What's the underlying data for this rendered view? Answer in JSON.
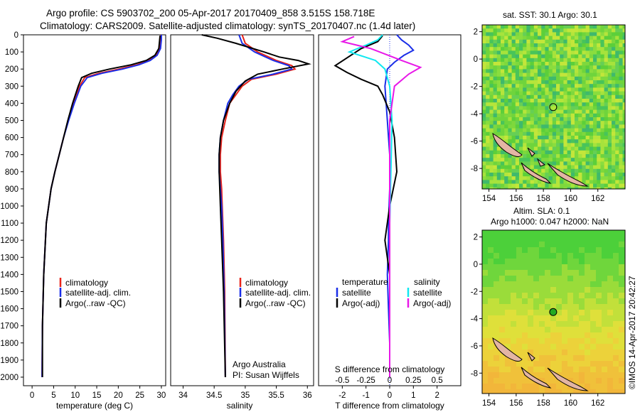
{
  "title": {
    "line1": "Argo profile: CS 5903702_200 05-Apr-2017 20170409_858 3.515S 158.718E",
    "line2": "Climatology: CARS2009. Satellite-adjusted climatology: synTS_20170407.nc (1.4d later)"
  },
  "colors": {
    "climatology": "#e8241a",
    "satellite": "#1a2ee8",
    "argo": "#000000",
    "sat_salinity": "#10e8f0",
    "argo_salinity": "#e818e8"
  },
  "chart_data": [
    {
      "type": "line",
      "name": "temperature-panel",
      "xlabel": "temperature (deg C)",
      "ylabel": "",
      "xlim": [
        -2,
        31
      ],
      "ylim": [
        2050,
        0
      ],
      "xticks": [
        0,
        5,
        10,
        15,
        20,
        25,
        30
      ],
      "yticks": [
        0,
        100,
        200,
        300,
        400,
        500,
        600,
        700,
        800,
        900,
        1000,
        1100,
        1200,
        1300,
        1400,
        1500,
        1600,
        1700,
        1800,
        1900,
        2000
      ],
      "legend": [
        "climatology",
        "satellite-adj. clim.",
        "Argo(..raw -QC)"
      ],
      "series": [
        {
          "name": "climatology",
          "color": "#e8241a",
          "x": [
            29.9,
            29.9,
            29.6,
            28.7,
            27.1,
            24.3,
            20.2,
            15.5,
            12.2,
            11.0,
            9.6,
            8.4,
            7.3,
            6.3,
            5.3,
            4.4,
            3.3,
            2.7,
            2.4,
            2.3
          ],
          "y": [
            0,
            30,
            80,
            120,
            150,
            175,
            200,
            225,
            250,
            300,
            400,
            500,
            600,
            700,
            800,
            900,
            1100,
            1400,
            1700,
            2000
          ]
        },
        {
          "name": "satellite-adj. clim.",
          "color": "#1a2ee8",
          "x": [
            30.0,
            30.0,
            29.8,
            29.0,
            27.4,
            24.8,
            21.0,
            16.2,
            12.8,
            11.3,
            9.8,
            8.5,
            7.3,
            6.3,
            5.3,
            4.4,
            3.3,
            2.7,
            2.4,
            2.3
          ],
          "y": [
            0,
            30,
            80,
            120,
            150,
            175,
            200,
            225,
            250,
            300,
            400,
            500,
            600,
            700,
            800,
            900,
            1100,
            1400,
            1700,
            2000
          ]
        },
        {
          "name": "Argo(..raw -QC)",
          "color": "#000000",
          "x": [
            29.7,
            29.6,
            29.4,
            28.5,
            26.5,
            23.0,
            18.0,
            13.8,
            11.5,
            10.7,
            9.4,
            8.3,
            7.3,
            6.3,
            5.3,
            4.4,
            3.3,
            2.7,
            2.4,
            2.4
          ],
          "y": [
            5,
            30,
            80,
            120,
            150,
            175,
            200,
            225,
            250,
            300,
            400,
            500,
            600,
            700,
            800,
            900,
            1100,
            1400,
            1700,
            2000
          ]
        }
      ]
    },
    {
      "type": "line",
      "name": "salinity-panel",
      "xlabel": "salinity",
      "ylabel": "",
      "xlim": [
        33.8,
        36.1
      ],
      "ylim": [
        2050,
        0
      ],
      "xticks": [
        34,
        34.5,
        35,
        35.5,
        36
      ],
      "legend": [
        "climatology",
        "satellite-adj. clim.",
        "Argo(..raw -QC)"
      ],
      "annotation": [
        "Argo Australia",
        "PI: Susan Wijffels"
      ],
      "series": [
        {
          "name": "climatology",
          "color": "#e8241a",
          "x": [
            34.95,
            35.0,
            35.2,
            35.5,
            35.75,
            35.8,
            35.5,
            35.1,
            34.95,
            34.85,
            34.75,
            34.68,
            34.62,
            34.6,
            34.6,
            34.62,
            34.63,
            34.65,
            34.67,
            34.68
          ],
          "y": [
            0,
            50,
            100,
            150,
            180,
            200,
            230,
            260,
            300,
            350,
            400,
            500,
            600,
            700,
            800,
            900,
            1000,
            1200,
            1500,
            2000
          ]
        },
        {
          "name": "satellite-adj. clim.",
          "color": "#1a2ee8",
          "x": [
            34.9,
            34.95,
            35.15,
            35.45,
            35.7,
            35.75,
            35.45,
            35.05,
            34.9,
            34.8,
            34.72,
            34.65,
            34.6,
            34.58,
            34.58,
            34.6,
            34.62,
            34.64,
            34.66,
            34.68
          ],
          "y": [
            0,
            50,
            100,
            150,
            180,
            200,
            230,
            260,
            300,
            350,
            400,
            500,
            600,
            700,
            800,
            900,
            1000,
            1200,
            1500,
            2000
          ]
        },
        {
          "name": "Argo(..raw -QC)",
          "color": "#000000",
          "x": [
            34.3,
            34.55,
            34.85,
            35.3,
            35.55,
            35.85,
            36.02,
            35.6,
            35.2,
            35.0,
            34.85,
            34.75,
            34.65,
            34.6,
            34.58,
            34.58,
            34.6,
            34.62,
            34.65,
            34.68
          ],
          "y": [
            0,
            20,
            50,
            100,
            130,
            150,
            170,
            200,
            230,
            270,
            330,
            400,
            500,
            600,
            700,
            800,
            1000,
            1200,
            1500,
            2000
          ]
        }
      ]
    },
    {
      "type": "line",
      "name": "difference-panel",
      "xlabel": "T difference from climatology",
      "xlabel_top": "S difference from climatology",
      "xlim": [
        -3,
        3
      ],
      "ylim": [
        2050,
        0
      ],
      "xticks": [
        -2,
        -1,
        0,
        1,
        2
      ],
      "xticks_labels": [
        "-2",
        "-1",
        "0",
        "1",
        "2"
      ],
      "xticks_top": [
        -2,
        -1,
        0,
        1,
        2
      ],
      "xticks_top_labels": [
        "-0.5",
        "-0.25",
        "0",
        "0.25",
        "0.5"
      ],
      "legend_left_title": "temperature",
      "legend_left": [
        "satellite",
        "Argo(-adj)"
      ],
      "legend_right_title": "salinity",
      "legend_right": [
        "satellite",
        "Argo(-adj)"
      ],
      "series": [
        {
          "name": "temperature satellite",
          "color": "#1a2ee8",
          "x": [
            0.3,
            0.5,
            0.8,
            1.0,
            0.6,
            0.2,
            -0.1,
            -0.2,
            -0.1,
            0.0,
            0.0,
            -0.05,
            -0.05,
            -0.1,
            -0.05,
            0.0,
            0.0
          ],
          "y": [
            0,
            30,
            60,
            90,
            120,
            160,
            200,
            300,
            500,
            700,
            900,
            1100,
            1200,
            1400,
            1600,
            1800,
            2000
          ]
        },
        {
          "name": "temperature Argo(-adj)",
          "color": "#000000",
          "x": [
            -0.3,
            -0.5,
            -1.2,
            -2.3,
            -1.8,
            -1.2,
            -0.5,
            -0.3,
            0.0,
            0.2,
            0.3,
            0.0,
            -0.2,
            0.0,
            0.0,
            0.0
          ],
          "y": [
            5,
            40,
            80,
            180,
            220,
            260,
            300,
            350,
            450,
            600,
            800,
            1000,
            1200,
            1400,
            1700,
            2000
          ]
        },
        {
          "name": "salinity satellite",
          "color": "#10e8f0",
          "x": [
            -0.3,
            -0.5,
            -1.0,
            -1.7,
            -0.6,
            -0.2,
            0.0,
            0.1,
            0.05,
            0.0,
            0.0,
            0.0,
            0.0
          ],
          "y": [
            0,
            30,
            60,
            100,
            150,
            200,
            300,
            500,
            800,
            1100,
            1400,
            1700,
            2000
          ]
        },
        {
          "name": "salinity Argo(-adj)",
          "color": "#e818e8",
          "x": [
            -1.5,
            -2.0,
            -0.8,
            0.5,
            1.3,
            0.8,
            0.2,
            0.0,
            0.0,
            0.0,
            0.0
          ],
          "y": [
            10,
            40,
            80,
            150,
            190,
            230,
            300,
            500,
            900,
            1400,
            2000
          ]
        }
      ]
    }
  ],
  "maps": {
    "top": {
      "title": "sat. SST: 30.1 Argo: 30.1",
      "xticks": [
        "154",
        "156",
        "158",
        "160",
        "162"
      ],
      "yticks": [
        "2",
        "0",
        "-2",
        "-4",
        "-6",
        "-8"
      ],
      "xlim": [
        153.5,
        164
      ],
      "ylim": [
        -9.5,
        2.5
      ],
      "marker": {
        "lon": 158.718,
        "lat": -3.515
      }
    },
    "bottom": {
      "title1": "Altim. SLA: 0.1",
      "title2": "Argo h1000: 0.047 h2000: NaN",
      "xticks": [
        "154",
        "156",
        "158",
        "160",
        "162"
      ],
      "yticks": [
        "2",
        "0",
        "-2",
        "-4",
        "-6",
        "-8"
      ],
      "xlim": [
        153.5,
        164
      ],
      "ylim": [
        -9.5,
        2.5
      ],
      "marker": {
        "lon": 158.718,
        "lat": -3.515
      }
    }
  },
  "credit": "©IMOS 14-Apr-2017 20:42:27"
}
